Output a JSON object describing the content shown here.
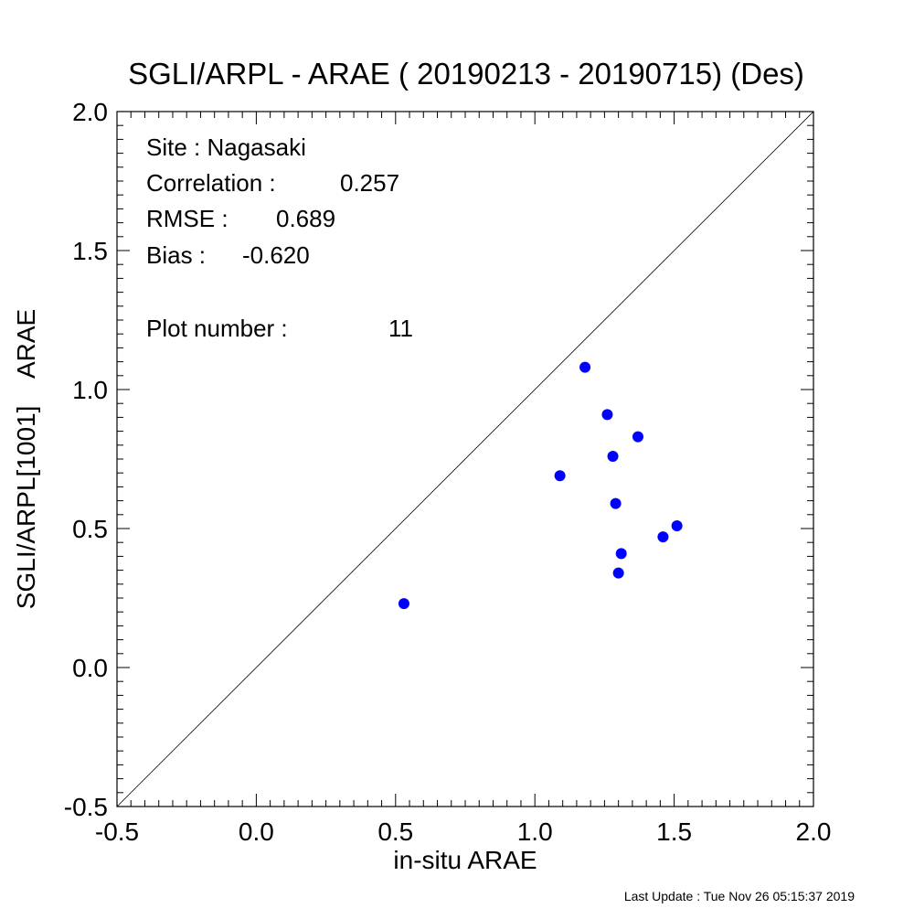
{
  "chart_data": {
    "type": "scatter",
    "title": "SGLI/ARPL - ARAE ( 20190213 - 20190715) (Des)",
    "xlabel": "in-situ ARAE",
    "ylabel": "SGLI/ARPL[1001]    ARAE",
    "xlim": [
      -0.5,
      2.0
    ],
    "ylim": [
      -0.5,
      2.0
    ],
    "x_ticks": [
      "-0.5",
      "0.0",
      "0.5",
      "1.0",
      "1.5",
      "2.0"
    ],
    "y_ticks": [
      "-0.5",
      "0.0",
      "0.5",
      "1.0",
      "1.5",
      "2.0"
    ],
    "grid": false,
    "reference_line": "1:1",
    "point_color": "#0000ff",
    "series": [
      {
        "x": [
          0.53,
          1.09,
          1.18,
          1.26,
          1.28,
          1.29,
          1.3,
          1.31,
          1.37,
          1.46,
          1.51
        ],
        "y": [
          0.23,
          0.69,
          1.08,
          0.91,
          0.76,
          0.59,
          0.34,
          0.41,
          0.83,
          0.47,
          0.51
        ]
      }
    ],
    "annotations": {
      "site": "Site : Nagasaki",
      "correlation_label": "Correlation :",
      "correlation_value": "0.257",
      "rmse_label": "RMSE :",
      "rmse_value": "0.689",
      "bias_label": "Bias :",
      "bias_value": "-0.620",
      "plot_number_label": "Plot number :",
      "plot_number_value": "11"
    }
  },
  "footer": {
    "last_update": "Last Update : Tue Nov 26 05:15:37 2019"
  }
}
